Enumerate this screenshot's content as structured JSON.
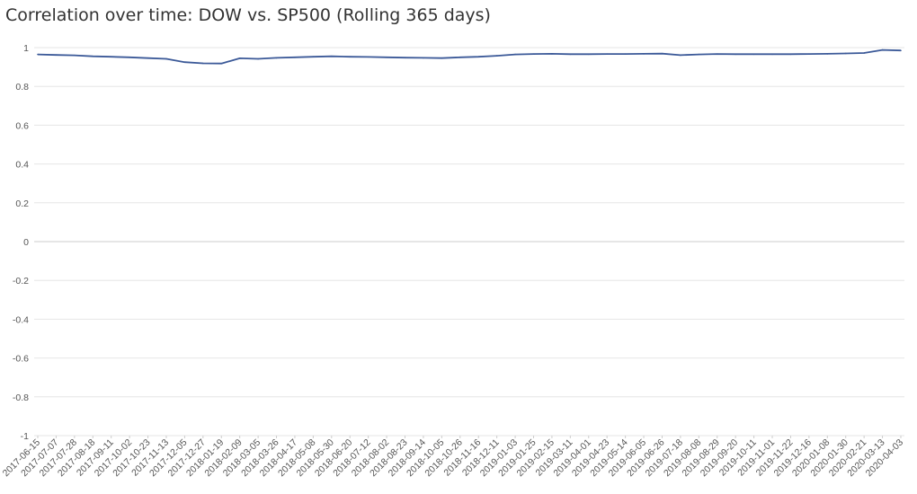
{
  "chart_data": {
    "type": "line",
    "title": "Correlation over time: DOW vs. SP500 (Rolling 365 days)",
    "xlabel": "",
    "ylabel": "",
    "ylim": [
      -1,
      1
    ],
    "yticks": [
      "1",
      "0.8",
      "0.6",
      "0.4",
      "0.2",
      "0",
      "-0.2",
      "-0.4",
      "-0.6",
      "-0.8",
      "-1"
    ],
    "ytick_values": [
      1,
      0.8,
      0.6,
      0.4,
      0.2,
      0,
      -0.2,
      -0.4,
      -0.6,
      -0.8,
      -1
    ],
    "grid": true,
    "legend": "none",
    "line_color": "#3b5998",
    "categories": [
      "2017-06-15",
      "2017-07-07",
      "2017-07-28",
      "2017-08-18",
      "2017-09-11",
      "2017-10-02",
      "2017-10-23",
      "2017-11-13",
      "2017-12-05",
      "2017-12-27",
      "2018-01-19",
      "2018-02-09",
      "2018-03-05",
      "2018-03-26",
      "2018-04-17",
      "2018-05-08",
      "2018-05-30",
      "2018-06-20",
      "2018-07-12",
      "2018-08-02",
      "2018-08-23",
      "2018-09-14",
      "2018-10-05",
      "2018-10-26",
      "2018-11-16",
      "2018-12-11",
      "2019-01-03",
      "2019-01-25",
      "2019-02-15",
      "2019-03-11",
      "2019-04-01",
      "2019-04-23",
      "2019-05-14",
      "2019-06-05",
      "2019-06-26",
      "2019-07-18",
      "2019-08-08",
      "2019-08-29",
      "2019-09-20",
      "2019-10-11",
      "2019-11-01",
      "2019-11-22",
      "2019-12-16",
      "2020-01-08",
      "2020-01-30",
      "2020-02-21",
      "2020-03-13",
      "2020-04-03"
    ],
    "series": [
      {
        "values": [
          0.965,
          0.962,
          0.96,
          0.955,
          0.953,
          0.95,
          0.946,
          0.942,
          0.925,
          0.919,
          0.918,
          0.945,
          0.942,
          0.947,
          0.95,
          0.953,
          0.955,
          0.953,
          0.952,
          0.95,
          0.948,
          0.947,
          0.946,
          0.95,
          0.953,
          0.958,
          0.965,
          0.967,
          0.968,
          0.966,
          0.966,
          0.967,
          0.967,
          0.968,
          0.969,
          0.961,
          0.965,
          0.967,
          0.966,
          0.966,
          0.966,
          0.966,
          0.967,
          0.968,
          0.97,
          0.972,
          0.988,
          0.985
        ]
      }
    ]
  }
}
